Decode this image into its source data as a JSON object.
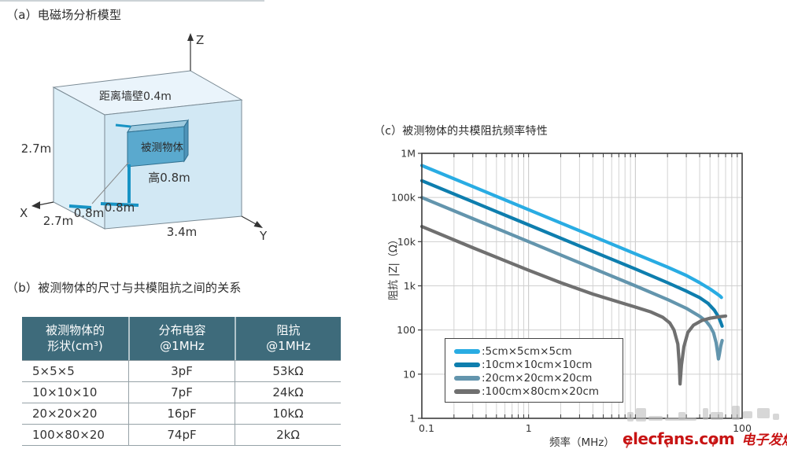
{
  "section_a": {
    "title": "（a）电磁场分析模型",
    "diagram": {
      "axis_z": "Z",
      "axis_x": "X",
      "axis_y": "Y",
      "wall_distance": "距离墙壁0.4m",
      "object_label": "被测物体",
      "object_height": "高0.8m",
      "offset_left": "0.8m",
      "offset_right": "0.8m",
      "room_height": "2.7m",
      "room_depth": "2.7m",
      "room_width": "3.4m",
      "colors": {
        "room_top": "#EAF4FB",
        "room_left": "#DDEFF8",
        "room_right": "#D2E8F4",
        "edge": "#7A8A94",
        "object_front": "#5AA9CE",
        "object_top": "#9ECBE0",
        "object_side": "#4E93B8",
        "accent": "#1793C4"
      }
    }
  },
  "section_b": {
    "title": "（b）被测物体的尺寸与共模阻抗之间的关系",
    "table": {
      "header_bg": "#3E6B7B",
      "headers": [
        [
          "被测物体的",
          "形状(cm³)"
        ],
        [
          "分布电容",
          "@1MHz"
        ],
        [
          "阻抗",
          "@1MHz"
        ]
      ],
      "rows": [
        [
          "5×5×5",
          "3pF",
          "53kΩ"
        ],
        [
          "10×10×10",
          "7pF",
          "24kΩ"
        ],
        [
          "20×20×20",
          "16pF",
          "10kΩ"
        ],
        [
          "100×80×20",
          "74pF",
          "2kΩ"
        ]
      ]
    }
  },
  "section_c": {
    "title": "（c）被测物体的共模阻抗频率特性"
  },
  "chart_data": {
    "type": "line",
    "title": "（c）被测物体的共模阻抗频率特性",
    "xlabel": "频率（MHz）",
    "ylabel": "阻抗 |Z|（Ω）",
    "x_scale": "log",
    "y_scale": "log",
    "xlim": [
      0.1,
      100
    ],
    "ylim": [
      1,
      1000000
    ],
    "grid": true,
    "xticks": [
      {
        "v": 0.1,
        "label": "0.1"
      },
      {
        "v": 1,
        "label": "1"
      },
      {
        "v": 100,
        "label": "100"
      }
    ],
    "yticks": [
      {
        "v": 1000000,
        "label": "1M"
      },
      {
        "v": 100000,
        "label": "100k"
      },
      {
        "v": 10000,
        "label": "10k"
      },
      {
        "v": 1000,
        "label": "1k"
      },
      {
        "v": 100,
        "label": "100"
      },
      {
        "v": 10,
        "label": "10"
      },
      {
        "v": 1,
        "label": "1"
      }
    ],
    "legend": {
      "position": "inside bottom-left",
      "entries": [
        {
          "label": ":5cm×5cm×5cm",
          "color": "#29ACE3"
        },
        {
          "label": ":10cm×10cm×10cm",
          "color": "#0E7EAE"
        },
        {
          "label": ":20cm×20cm×20cm",
          "color": "#6395AD"
        },
        {
          "label": ":100cm×80cm×20cm",
          "color": "#707070"
        }
      ]
    },
    "series": [
      {
        "name": "5cm×5cm×5cm",
        "color": "#29ACE3",
        "points": [
          [
            0.1,
            530000
          ],
          [
            0.3,
            177000
          ],
          [
            1,
            53000
          ],
          [
            3,
            17700
          ],
          [
            10,
            5300
          ],
          [
            20,
            2650
          ],
          [
            30,
            1720
          ],
          [
            40,
            1180
          ],
          [
            50,
            850
          ],
          [
            57,
            680
          ],
          [
            62,
            590
          ],
          [
            64,
            545
          ]
        ]
      },
      {
        "name": "10cm×10cm×10cm",
        "color": "#0E7EAE",
        "points": [
          [
            0.1,
            240000
          ],
          [
            0.3,
            80000
          ],
          [
            1,
            24000
          ],
          [
            3,
            8000
          ],
          [
            10,
            2400
          ],
          [
            20,
            1180
          ],
          [
            30,
            760
          ],
          [
            40,
            540
          ],
          [
            48,
            400
          ],
          [
            55,
            280
          ],
          [
            60,
            200
          ],
          [
            63,
            150
          ],
          [
            65,
            122
          ]
        ]
      },
      {
        "name": "20cm×20cm×20cm",
        "color": "#6395AD",
        "points": [
          [
            0.1,
            100000
          ],
          [
            0.3,
            33300
          ],
          [
            1,
            10000
          ],
          [
            3,
            3330
          ],
          [
            10,
            1000
          ],
          [
            20,
            490
          ],
          [
            30,
            310
          ],
          [
            40,
            205
          ],
          [
            46,
            158
          ],
          [
            50,
            122
          ],
          [
            54,
            86
          ],
          [
            57,
            52
          ],
          [
            59,
            30
          ],
          [
            60,
            22
          ],
          [
            61,
            27
          ],
          [
            63,
            43
          ],
          [
            65,
            58
          ]
        ]
      },
      {
        "name": "100cm×80cm×20cm",
        "color": "#707070",
        "points": [
          [
            0.1,
            22000
          ],
          [
            0.3,
            7300
          ],
          [
            1,
            2250
          ],
          [
            2,
            1180
          ],
          [
            4,
            650
          ],
          [
            7,
            430
          ],
          [
            10,
            330
          ],
          [
            14,
            255
          ],
          [
            18,
            195
          ],
          [
            21,
            145
          ],
          [
            23,
            100
          ],
          [
            25,
            48
          ],
          [
            25.8,
            16
          ],
          [
            26.2,
            6
          ],
          [
            27,
            16
          ],
          [
            28.5,
            42
          ],
          [
            31,
            88
          ],
          [
            35,
            128
          ],
          [
            42,
            165
          ],
          [
            50,
            185
          ],
          [
            60,
            198
          ],
          [
            70,
            207
          ]
        ]
      }
    ]
  },
  "watermark": {
    "brand": "elecfans.com",
    "brand_cn": "电子发烧友",
    "color": "#c81414"
  }
}
